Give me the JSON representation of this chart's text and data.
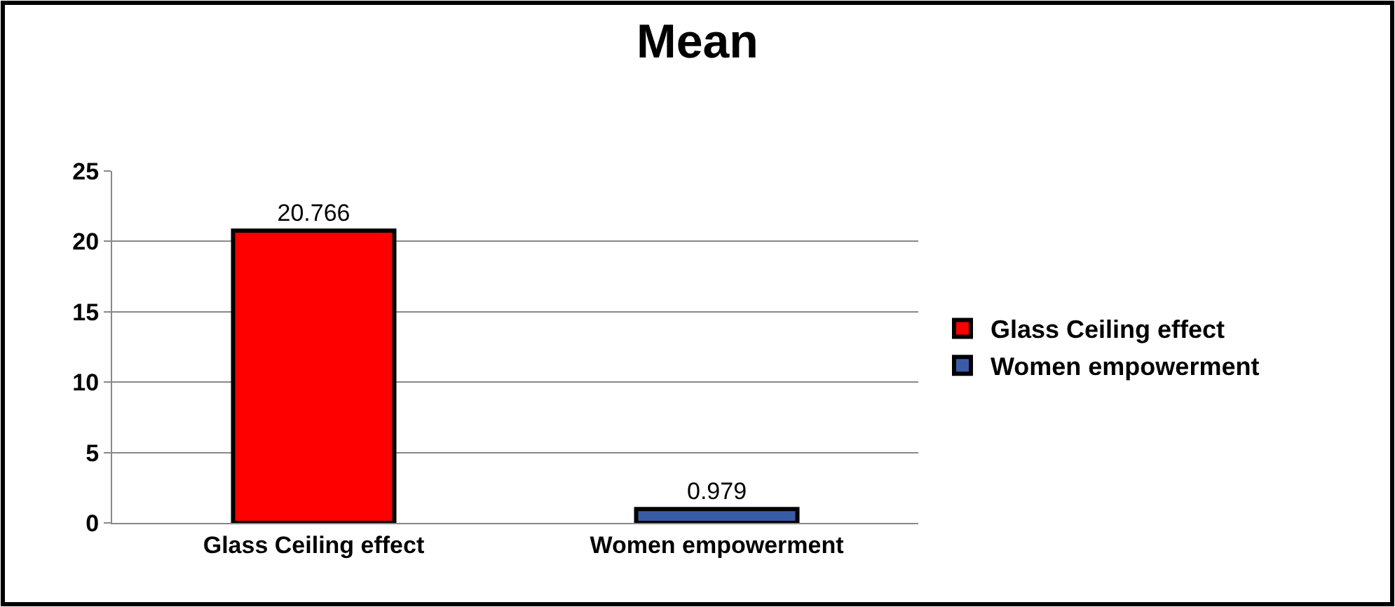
{
  "chart_data": {
    "type": "bar",
    "title": "Mean",
    "categories": [
      "Glass Ceiling effect",
      "Women empowerment"
    ],
    "series": [
      {
        "name": "Glass Ceiling effect",
        "color": "#ff0000",
        "values": [
          20.766,
          null
        ]
      },
      {
        "name": "Women empowerment",
        "color": "#3a5ca8",
        "values": [
          null,
          0.979
        ]
      }
    ],
    "ylim": [
      0,
      25
    ],
    "yticks": [
      0,
      5,
      10,
      15,
      20,
      25
    ],
    "grid": "y",
    "legend": "right",
    "data_labels": true
  }
}
